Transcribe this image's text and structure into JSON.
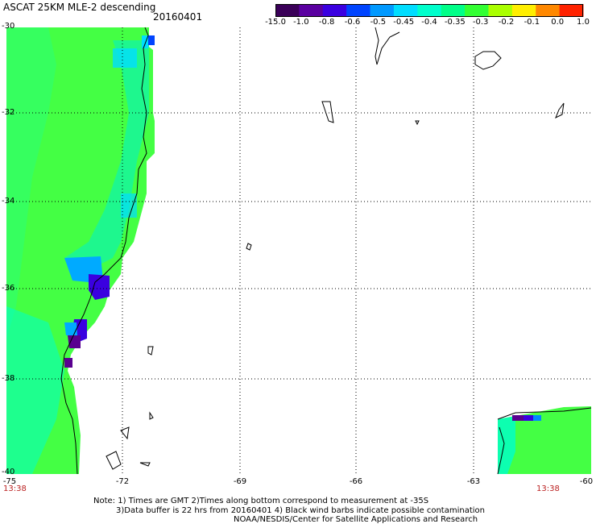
{
  "header": {
    "title": "ASCAT 25KM MLE-2 descending",
    "date": "20160401"
  },
  "colorbar": {
    "labels": [
      "-15.0",
      "-1.0",
      "-0.8",
      "-0.6",
      "-0.5",
      "-0.45",
      "-0.4",
      "-0.35",
      "-0.3",
      "-0.2",
      "-0.1",
      "0.0",
      "1.0"
    ],
    "colors": [
      "#3a0058",
      "#5a00a0",
      "#3a00e0",
      "#0044ff",
      "#0099ff",
      "#00ddff",
      "#00ffcc",
      "#00ff88",
      "#33ff33",
      "#aaff00",
      "#ffee00",
      "#ff8800",
      "#ff2200"
    ]
  },
  "axes": {
    "lat_labels": [
      "-30",
      "-32",
      "-34",
      "-36",
      "-38",
      "-40"
    ],
    "lon_labels": [
      "-75",
      "-72",
      "-69",
      "-66",
      "-63",
      "-60"
    ]
  },
  "time_labels": {
    "left": "13:38",
    "right": "13:38"
  },
  "footer": {
    "line1": "Note: 1) Times are GMT 2)Times along bottom correspond to measurement at -35S",
    "line2": "3)Data buffer is 22 hrs from 20160401 4) Black wind barbs indicate possible contamination",
    "line3": "NOAA/NESDIS/Center for Satellite Applications and Research"
  }
}
